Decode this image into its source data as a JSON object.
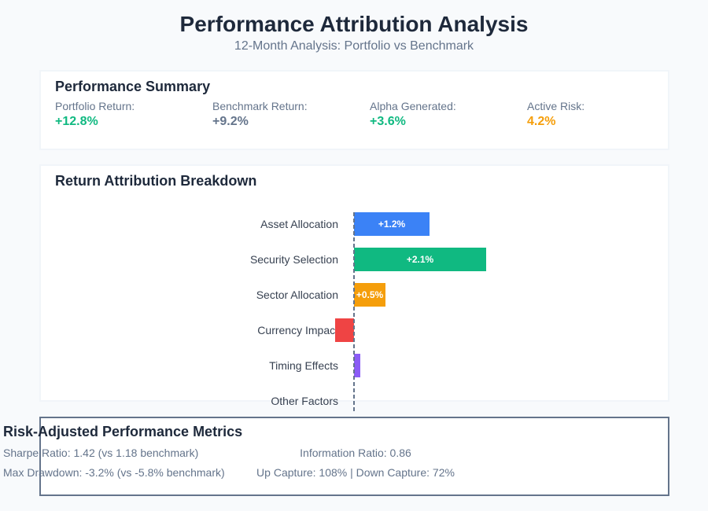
{
  "header": {
    "title": "Performance Attribution Analysis",
    "subtitle": "12-Month Analysis: Portfolio vs Benchmark"
  },
  "summary": {
    "title": "Performance Summary",
    "items": [
      {
        "label": "Portfolio Return:",
        "value": "+12.8%",
        "color": "#10b981"
      },
      {
        "label": "Benchmark Return:",
        "value": "+9.2%",
        "color": "#64748b"
      },
      {
        "label": "Alpha Generated:",
        "value": "+3.6%",
        "color": "#10b981"
      },
      {
        "label": "Active Risk:",
        "value": "4.2%",
        "color": "#f59e0b"
      }
    ]
  },
  "chart_data": {
    "type": "bar",
    "orientation": "horizontal",
    "title": "Return Attribution Breakdown",
    "categories": [
      "Asset Allocation",
      "Security Selection",
      "Sector Allocation",
      "Currency Impact",
      "Timing Effects",
      "Other Factors"
    ],
    "values": [
      1.2,
      2.1,
      0.5,
      -0.3,
      0.1,
      0
    ],
    "data_labels": [
      "+1.2%",
      "+2.1%",
      "+0.5%",
      "",
      "",
      ""
    ],
    "colors": [
      "#3b82f6",
      "#10b981",
      "#f59e0b",
      "#ef4444",
      "#8b5cf6",
      "#64748b"
    ],
    "zero_line": "dashed",
    "grid": false
  },
  "metrics": {
    "title": "Risk-Adjusted Performance Metrics",
    "left": [
      "Sharpe Ratio: 1.42 (vs 1.18 benchmark)",
      "Max Drawdown: -3.2% (vs -5.8% benchmark)"
    ],
    "right": [
      "Information Ratio: 0.86",
      "Up Capture: 108% | Down Capture: 72%"
    ]
  }
}
